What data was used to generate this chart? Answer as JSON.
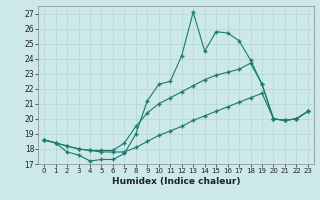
{
  "xlabel": "Humidex (Indice chaleur)",
  "bg_color": "#cce8e8",
  "line_color": "#1a7a6e",
  "grid_color": "#b8d8d8",
  "xlim": [
    -0.5,
    23.5
  ],
  "ylim": [
    17,
    27.5
  ],
  "xticks": [
    0,
    1,
    2,
    3,
    4,
    5,
    6,
    7,
    8,
    9,
    10,
    11,
    12,
    13,
    14,
    15,
    16,
    17,
    18,
    19,
    20,
    21,
    22,
    23
  ],
  "yticks": [
    17,
    18,
    19,
    20,
    21,
    22,
    23,
    24,
    25,
    26,
    27
  ],
  "series1_y": [
    18.6,
    18.4,
    17.8,
    17.6,
    17.2,
    17.3,
    17.3,
    17.7,
    19.0,
    21.2,
    22.3,
    22.5,
    24.2,
    27.1,
    24.5,
    25.8,
    25.7,
    25.2,
    23.9,
    22.3,
    20.0,
    19.9,
    20.0,
    20.5
  ],
  "series2_y": [
    18.6,
    18.4,
    18.2,
    18.0,
    17.9,
    17.9,
    17.9,
    18.4,
    19.5,
    20.4,
    21.0,
    21.4,
    21.8,
    22.2,
    22.6,
    22.9,
    23.1,
    23.3,
    23.7,
    22.3,
    20.0,
    19.9,
    20.0,
    20.5
  ],
  "series3_y": [
    18.6,
    18.4,
    18.2,
    18.0,
    17.9,
    17.8,
    17.8,
    17.8,
    18.1,
    18.5,
    18.9,
    19.2,
    19.5,
    19.9,
    20.2,
    20.5,
    20.8,
    21.1,
    21.4,
    21.7,
    20.0,
    19.9,
    20.0,
    20.5
  ]
}
